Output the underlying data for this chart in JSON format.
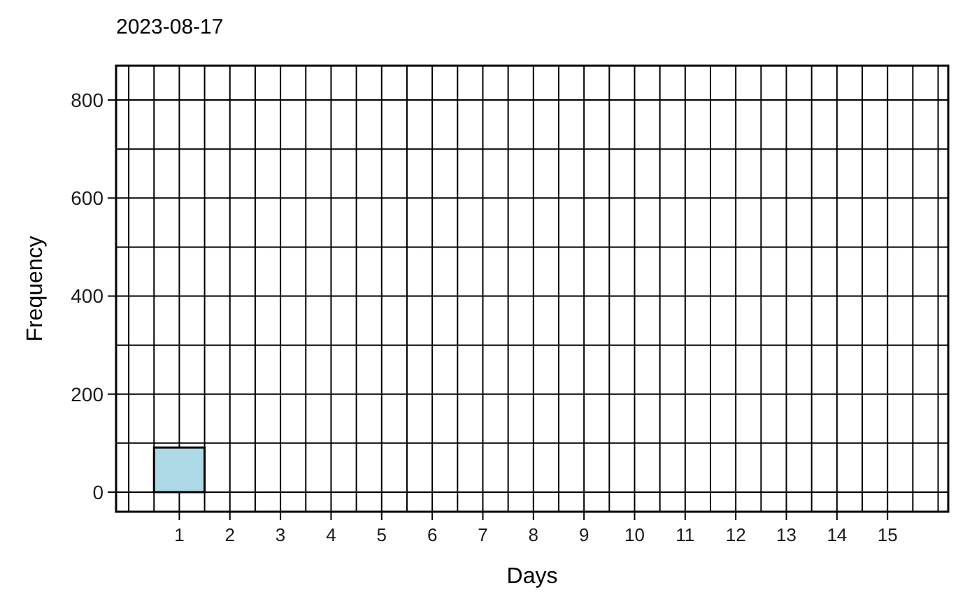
{
  "chart_data": {
    "type": "histogram",
    "title": "2023-08-17",
    "xlabel": "Days",
    "ylabel": "Frequency",
    "bins": [
      0.5,
      1.5,
      2.5,
      3.5,
      4.5,
      5.5,
      6.5,
      7.5,
      8.5,
      9.5,
      10.5,
      11.5,
      12.5,
      13.5,
      14.5,
      15.5
    ],
    "values": [
      91,
      0,
      0,
      0,
      0,
      0,
      0,
      0,
      0,
      0,
      0,
      0,
      0,
      0,
      0
    ],
    "color": "#add8e6",
    "xlim": [
      -0.25,
      16.2
    ],
    "xticks": [
      1,
      2,
      3,
      4,
      5,
      6,
      7,
      8,
      9,
      10,
      11,
      12,
      13,
      14,
      15
    ],
    "ylim": [
      -40,
      870
    ],
    "yticks": [
      0,
      200,
      400,
      600,
      800
    ],
    "grid": true
  }
}
